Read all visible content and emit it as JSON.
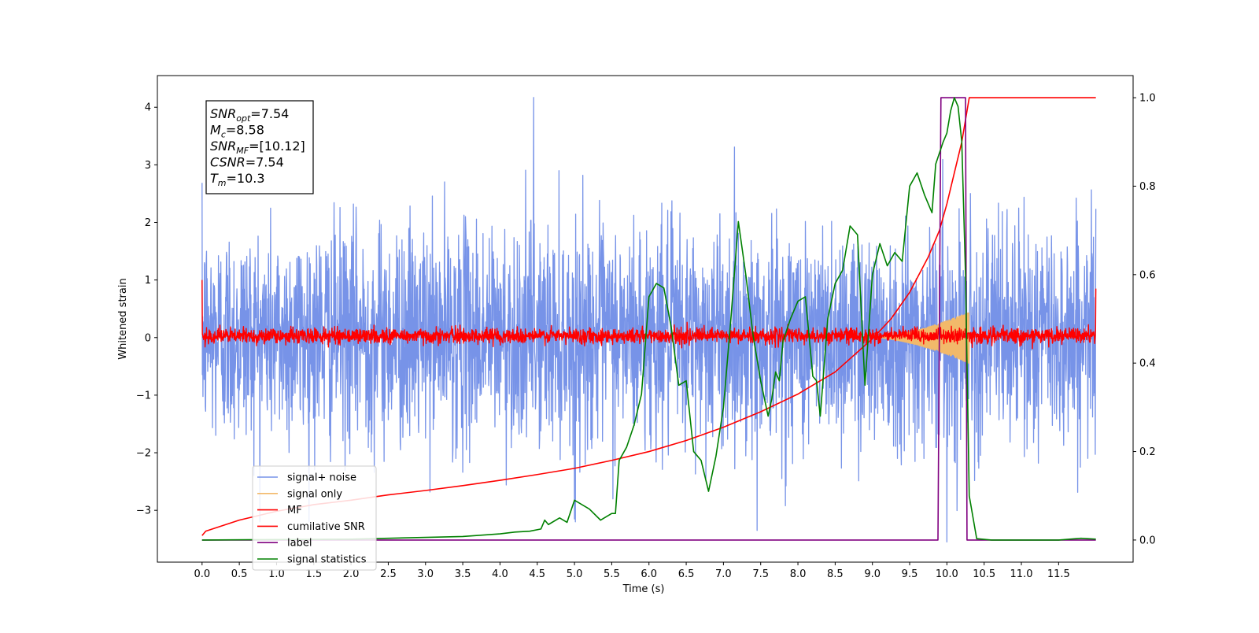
{
  "chart_data": {
    "type": "line",
    "title": "",
    "xlabel": "Time (s)",
    "ylabel": "Whitened strain",
    "y2label": "",
    "xlim": [
      -0.6,
      12.5
    ],
    "ylim": [
      -3.9,
      4.55
    ],
    "y2lim": [
      -0.05,
      1.05
    ],
    "x_ticks": [
      0.0,
      0.5,
      1.0,
      1.5,
      2.0,
      2.5,
      3.0,
      3.5,
      4.0,
      4.5,
      5.0,
      5.5,
      6.0,
      6.5,
      7.0,
      7.5,
      8.0,
      8.5,
      9.0,
      9.5,
      10.0,
      10.5,
      11.0,
      11.5
    ],
    "x_tick_labels": [
      "0.0",
      "0.5",
      "1.0",
      "1.5",
      "2.0",
      "2.5",
      "3.0",
      "3.5",
      "4.0",
      "4.5",
      "5.0",
      "5.5",
      "6.0",
      "6.5",
      "7.0",
      "7.5",
      "8.0",
      "8.5",
      "9.0",
      "9.5",
      "10.0",
      "10.5",
      "11.0",
      "11.5"
    ],
    "y_ticks": [
      4,
      3,
      2,
      1,
      0,
      -1,
      -2,
      -3
    ],
    "y_tick_labels": [
      "4",
      "3",
      "2",
      "1",
      "0",
      "−1",
      "−2",
      "−3"
    ],
    "y2_ticks": [
      1.0,
      0.8,
      0.6,
      0.4,
      0.2,
      0.0
    ],
    "y2_tick_labels": [
      "1.0",
      "0.8",
      "0.6",
      "0.4",
      "0.2",
      "0.0"
    ],
    "legend_position": "lower-left",
    "annotation": {
      "lines": [
        {
          "sym": "SNR",
          "sub": "opt",
          "value": "=7.54"
        },
        {
          "sym": "M",
          "sub": "c",
          "value": "=8.58"
        },
        {
          "sym": "SNR",
          "sub": "MF",
          "value": "=[10.12]"
        },
        {
          "sym": "CSNR",
          "sub": "",
          "value": "=7.54"
        },
        {
          "sym": "T",
          "sub": "m",
          "value": "=10.3"
        }
      ]
    },
    "series": [
      {
        "name": "signal+ noise",
        "color": "#7793e8",
        "axis": "left",
        "kind": "noise",
        "x_range": [
          0.0,
          12.0
        ],
        "envelope_typical": [
          -1.8,
          2.0
        ],
        "peak_points": [
          [
            4.45,
            4.17
          ],
          [
            10.0,
            -3.55
          ],
          [
            7.45,
            -3.35
          ],
          [
            5.0,
            -3.15
          ]
        ]
      },
      {
        "name": "signal only",
        "color": "#f2b96a",
        "axis": "left",
        "kind": "chirp",
        "x_range": [
          9.0,
          10.3
        ],
        "amplitude_end": 0.45
      },
      {
        "name": "MF",
        "color": "#ff0000",
        "axis": "left",
        "kind": "noise",
        "x_range": [
          0.0,
          12.0
        ],
        "envelope_typical": [
          -0.1,
          0.15
        ],
        "edge_points": [
          [
            0.0,
            1.0
          ],
          [
            12.0,
            0.85
          ]
        ]
      },
      {
        "name": "cumilative SNR",
        "color": "#ff0000",
        "axis": "right",
        "x": [
          0.0,
          0.05,
          0.5,
          1.0,
          1.5,
          2.0,
          2.5,
          3.0,
          3.5,
          4.0,
          4.5,
          5.0,
          5.5,
          6.0,
          6.5,
          7.0,
          7.5,
          8.0,
          8.5,
          9.0,
          9.25,
          9.5,
          9.75,
          9.9,
          10.0,
          10.1,
          10.2,
          10.3,
          11.0,
          12.0
        ],
        "y": [
          0.01,
          0.02,
          0.045,
          0.065,
          0.08,
          0.09,
          0.102,
          0.112,
          0.123,
          0.135,
          0.148,
          0.162,
          0.18,
          0.2,
          0.225,
          0.255,
          0.29,
          0.33,
          0.38,
          0.455,
          0.5,
          0.56,
          0.64,
          0.7,
          0.76,
          0.83,
          0.9,
          1.0,
          1.0,
          1.0
        ]
      },
      {
        "name": "label",
        "color": "#800080",
        "axis": "right",
        "x": [
          0.0,
          9.88,
          9.92,
          10.25,
          10.27,
          12.0
        ],
        "y": [
          0.0,
          0.0,
          1.0,
          1.0,
          0.0,
          0.0
        ]
      },
      {
        "name": "signal statistics",
        "color": "#008000",
        "axis": "right",
        "x": [
          0.0,
          1.0,
          2.0,
          2.5,
          3.0,
          3.5,
          4.0,
          4.2,
          4.4,
          4.55,
          4.6,
          4.65,
          4.8,
          4.9,
          5.0,
          5.2,
          5.35,
          5.4,
          5.5,
          5.55,
          5.6,
          5.7,
          5.8,
          5.9,
          6.0,
          6.1,
          6.2,
          6.3,
          6.4,
          6.5,
          6.6,
          6.7,
          6.8,
          6.9,
          7.0,
          7.1,
          7.2,
          7.3,
          7.4,
          7.5,
          7.6,
          7.65,
          7.7,
          7.75,
          7.8,
          7.9,
          8.0,
          8.1,
          8.2,
          8.25,
          8.3,
          8.4,
          8.5,
          8.6,
          8.7,
          8.8,
          8.9,
          9.0,
          9.1,
          9.2,
          9.3,
          9.4,
          9.5,
          9.6,
          9.7,
          9.8,
          9.85,
          9.95,
          10.0,
          10.05,
          10.1,
          10.15,
          10.2,
          10.25,
          10.3,
          10.4,
          10.6,
          11.0,
          11.5,
          11.8,
          12.0
        ],
        "y": [
          0.0,
          0.001,
          0.002,
          0.004,
          0.006,
          0.008,
          0.014,
          0.018,
          0.02,
          0.025,
          0.045,
          0.035,
          0.05,
          0.04,
          0.09,
          0.07,
          0.045,
          0.05,
          0.06,
          0.06,
          0.18,
          0.21,
          0.26,
          0.33,
          0.55,
          0.58,
          0.57,
          0.48,
          0.35,
          0.36,
          0.2,
          0.18,
          0.11,
          0.19,
          0.3,
          0.5,
          0.72,
          0.6,
          0.46,
          0.36,
          0.28,
          0.32,
          0.38,
          0.36,
          0.45,
          0.5,
          0.54,
          0.55,
          0.37,
          0.36,
          0.28,
          0.5,
          0.58,
          0.61,
          0.71,
          0.69,
          0.35,
          0.6,
          0.67,
          0.62,
          0.65,
          0.63,
          0.8,
          0.83,
          0.78,
          0.74,
          0.85,
          0.9,
          0.92,
          0.97,
          1.0,
          0.98,
          0.9,
          0.6,
          0.1,
          0.003,
          0.0,
          0.0,
          0.0,
          0.004,
          0.002
        ]
      }
    ]
  }
}
